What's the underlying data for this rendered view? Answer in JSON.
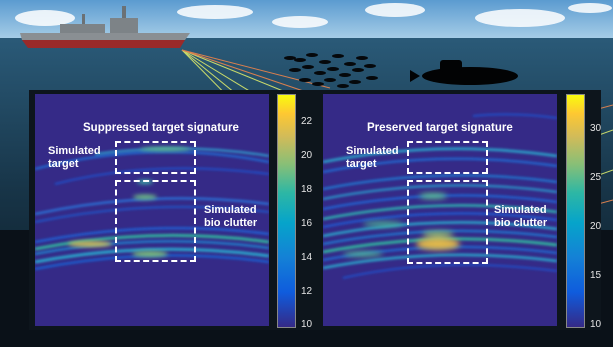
{
  "left_panel": {
    "title": "Suppressed target signature",
    "target_label": "Simulated\ntarget",
    "clutter_label": "Simulated\nbio clutter",
    "colorbar_ticks": [
      "22",
      "20",
      "18",
      "16",
      "14",
      "12",
      "10"
    ]
  },
  "right_panel": {
    "title": "Preserved target signature",
    "target_label": "Simulated\ntarget",
    "clutter_label": "Simulated\nbio clutter",
    "colorbar_ticks": [
      "30",
      "25",
      "20",
      "15",
      "10"
    ]
  },
  "colors": {
    "sky": "#8fc0e0",
    "ocean": "#17354a",
    "image_background": "#352a87",
    "annotation": "#ffffff"
  }
}
